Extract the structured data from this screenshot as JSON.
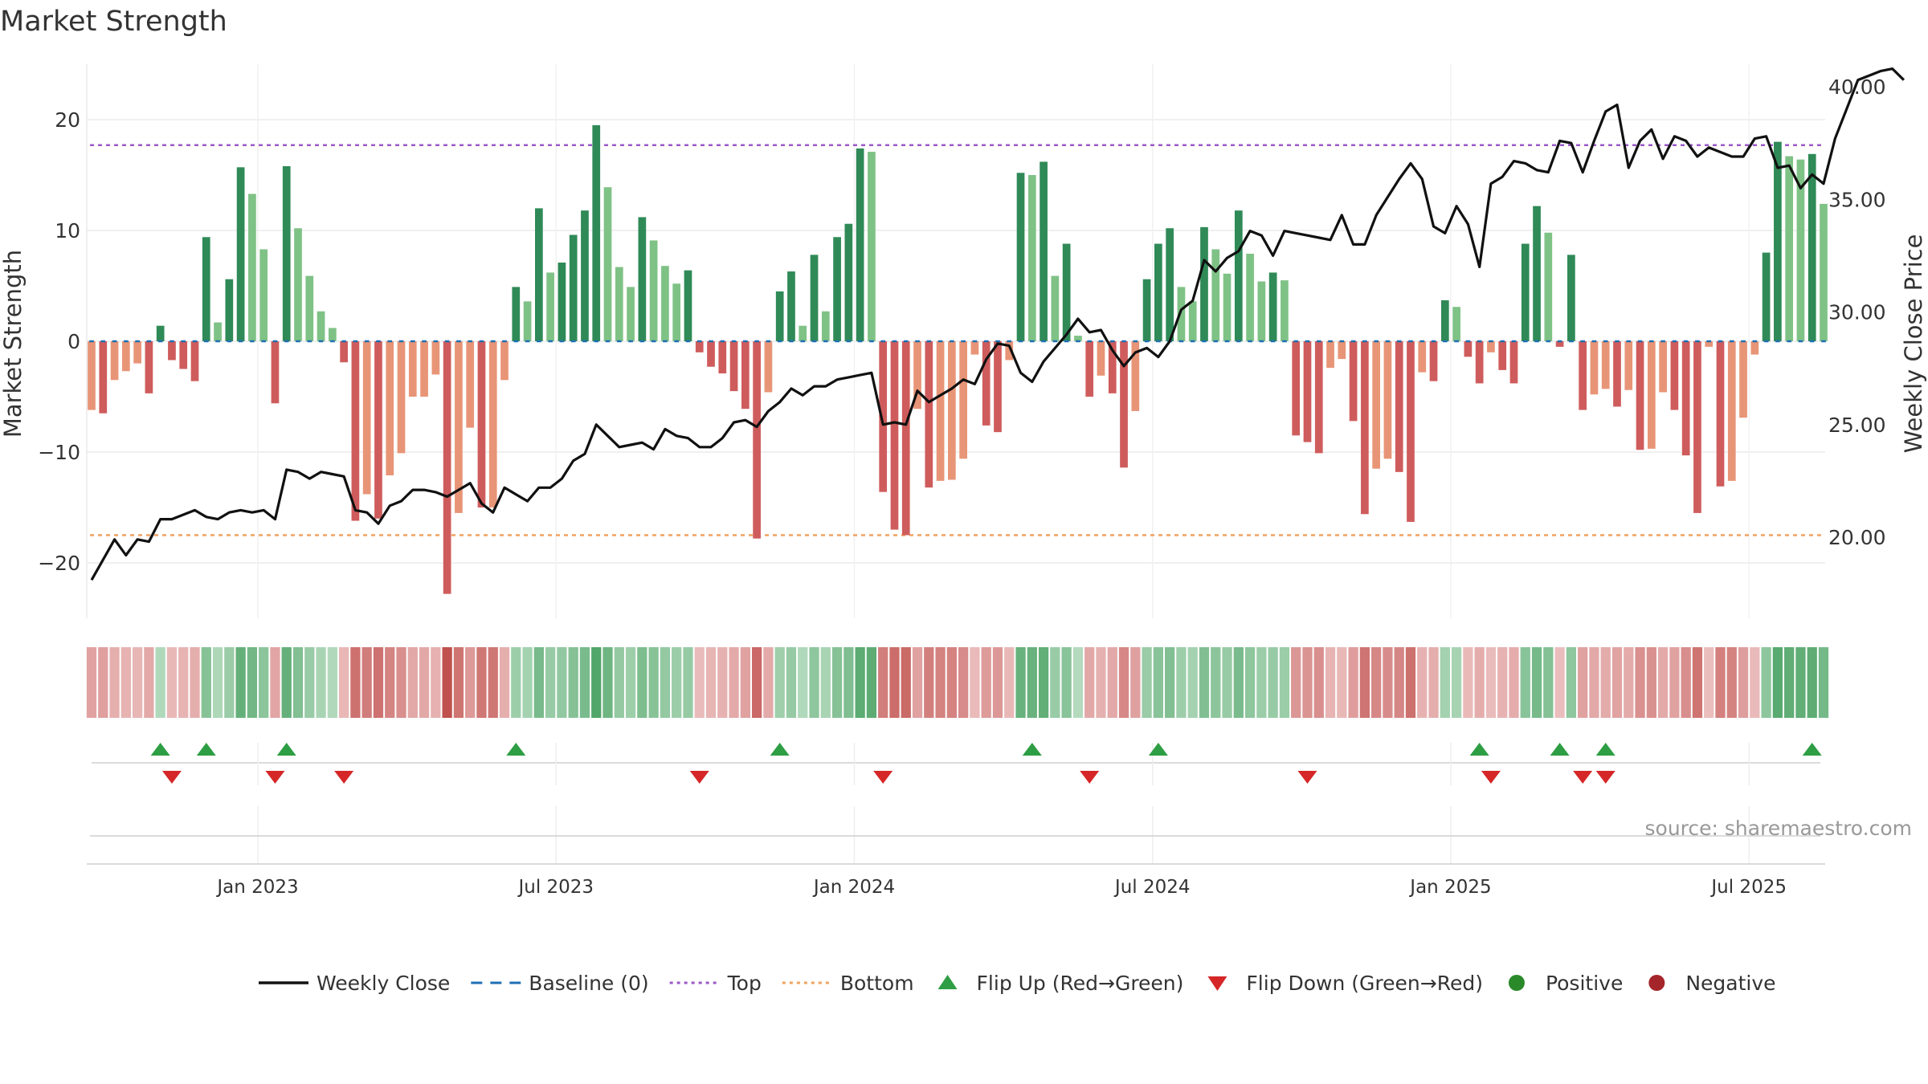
{
  "chart_data": {
    "type": "bar",
    "title": "Market Strength",
    "ylabel_left": "Market Strength",
    "ylabel_right": "Weekly Close Price",
    "source": "source: sharemaestro.com",
    "ylim_left": [
      -25,
      25
    ],
    "ylim_right": [
      16.4,
      41.0
    ],
    "left_ticks": [
      {
        "v": 20,
        "label": "20"
      },
      {
        "v": 10,
        "label": "10"
      },
      {
        "v": 0,
        "label": "0"
      },
      {
        "v": -10,
        "label": "−10"
      },
      {
        "v": -20,
        "label": "−20"
      }
    ],
    "right_ticks": [
      {
        "v": 40,
        "label": "40.00"
      },
      {
        "v": 35,
        "label": "35.00"
      },
      {
        "v": 30,
        "label": "30.00"
      },
      {
        "v": 25,
        "label": "25.00"
      },
      {
        "v": 20,
        "label": "20.00"
      }
    ],
    "x_ticks": [
      {
        "i": 14.5,
        "label": "Jan 2023"
      },
      {
        "i": 40.5,
        "label": "Jul 2023"
      },
      {
        "i": 66.5,
        "label": "Jan 2024"
      },
      {
        "i": 92.5,
        "label": "Jul 2024"
      },
      {
        "i": 118.5,
        "label": "Jan 2025"
      },
      {
        "i": 144.5,
        "label": "Jul 2025"
      }
    ],
    "top_threshold": 17.7,
    "bottom_threshold": -17.5,
    "values": [
      -6.2,
      -6.5,
      -3.5,
      -2.7,
      -2.0,
      -4.7,
      1.4,
      -1.7,
      -2.5,
      -3.6,
      9.4,
      1.7,
      5.6,
      15.7,
      13.3,
      8.3,
      -5.6,
      15.8,
      10.2,
      5.9,
      2.7,
      1.2,
      -1.9,
      -16.2,
      -13.8,
      -16.0,
      -12.1,
      -10.1,
      -5.0,
      -5.0,
      -3.0,
      -22.8,
      -15.5,
      -7.8,
      -15.0,
      -15.0,
      -3.5,
      4.9,
      3.6,
      12.0,
      6.2,
      7.1,
      9.6,
      11.8,
      19.5,
      13.9,
      6.7,
      4.9,
      11.2,
      9.1,
      6.8,
      5.2,
      6.4,
      -1.0,
      -2.3,
      -2.9,
      -4.5,
      -6.1,
      -17.8,
      -4.6,
      4.5,
      6.3,
      1.4,
      7.8,
      2.7,
      9.4,
      10.6,
      17.4,
      17.1,
      -13.6,
      -17.0,
      -17.5,
      -6.1,
      -13.2,
      -12.6,
      -12.5,
      -10.6,
      -1.2,
      -7.6,
      -8.2,
      -1.7,
      15.2,
      15.0,
      16.2,
      5.9,
      8.8,
      0.5,
      -5.0,
      -3.1,
      -4.7,
      -11.4,
      -6.3,
      5.6,
      8.8,
      10.2,
      4.9,
      3.6,
      10.3,
      8.3,
      6.1,
      11.8,
      7.9,
      5.4,
      6.2,
      5.5,
      -8.5,
      -9.1,
      -10.1,
      -2.4,
      -1.6,
      -7.2,
      -15.6,
      -11.5,
      -10.6,
      -11.8,
      -16.3,
      -2.8,
      -3.6,
      3.7,
      3.1,
      -1.4,
      -3.8,
      -1.0,
      -2.6,
      -3.8,
      8.8,
      12.2,
      9.8,
      -0.5,
      7.8,
      -6.2,
      -4.8,
      -4.3,
      -5.9,
      -4.4,
      -9.8,
      -9.7,
      -4.6,
      -6.2,
      -10.3,
      -15.5,
      -0.5,
      -13.1,
      -12.6,
      -6.9,
      -1.2,
      8.0,
      18.0,
      16.7,
      16.4,
      16.9,
      12.4
    ],
    "weekly_close": [
      18.1,
      19.0,
      19.9,
      19.2,
      19.9,
      19.8,
      20.8,
      20.8,
      21.0,
      21.2,
      20.9,
      20.8,
      21.1,
      21.2,
      21.1,
      21.2,
      20.8,
      23.0,
      22.9,
      22.6,
      22.9,
      22.8,
      22.7,
      21.2,
      21.1,
      20.6,
      21.4,
      21.6,
      22.1,
      22.1,
      22.0,
      21.8,
      22.1,
      22.4,
      21.5,
      21.1,
      22.2,
      21.9,
      21.6,
      22.2,
      22.2,
      22.6,
      23.4,
      23.7,
      25.0,
      24.5,
      24.0,
      24.1,
      24.2,
      23.9,
      24.8,
      24.5,
      24.4,
      24.0,
      24.0,
      24.4,
      25.1,
      25.2,
      24.9,
      25.6,
      26.0,
      26.6,
      26.3,
      26.7,
      26.7,
      27.0,
      27.1,
      27.2,
      27.3,
      25.0,
      25.1,
      25.0,
      26.5,
      26.0,
      26.3,
      26.6,
      27.0,
      26.8,
      27.9,
      28.6,
      28.5,
      27.3,
      26.9,
      27.8,
      28.4,
      29.0,
      29.7,
      29.1,
      29.2,
      28.3,
      27.6,
      28.2,
      28.4,
      28.0,
      28.7,
      30.1,
      30.5,
      32.3,
      31.8,
      32.4,
      32.7,
      33.6,
      33.4,
      32.5,
      33.6,
      33.5,
      33.4,
      33.3,
      33.2,
      34.3,
      33.0,
      33.0,
      34.3,
      35.1,
      35.9,
      36.6,
      35.9,
      33.8,
      33.5,
      34.7,
      33.9,
      32.0,
      35.7,
      36.0,
      36.7,
      36.6,
      36.3,
      36.2,
      37.6,
      37.5,
      36.2,
      37.6,
      38.9,
      39.2,
      36.4,
      37.6,
      38.1,
      36.8,
      37.8,
      37.6,
      36.9,
      37.3,
      37.1,
      36.9,
      36.9,
      37.7,
      37.8,
      36.4,
      36.5,
      35.5,
      36.1,
      35.7,
      37.7,
      39.0,
      40.3,
      40.5,
      40.7,
      40.8,
      40.3
    ],
    "flip_up_idx": [
      6,
      10,
      17,
      37,
      60,
      82,
      93,
      121,
      128,
      132,
      150
    ],
    "flip_down_idx": [
      7,
      16,
      22,
      53,
      69,
      87,
      106,
      122,
      130,
      132
    ],
    "legend": [
      {
        "key": "line",
        "label": "Weekly Close",
        "color": "#111111"
      },
      {
        "key": "dash",
        "label": "Baseline (0)",
        "color": "#1f6fb4"
      },
      {
        "key": "dot",
        "label": "Top",
        "color": "#9b59c9"
      },
      {
        "key": "dot",
        "label": "Bottom",
        "color": "#f0a35e"
      },
      {
        "key": "up",
        "label": "Flip Up (Red→Green)",
        "color": "#2e9e44"
      },
      {
        "key": "down",
        "label": "Flip Down (Green→Red)",
        "color": "#d62728"
      },
      {
        "key": "circle",
        "label": "Positive",
        "color": "#2a8a2a"
      },
      {
        "key": "circle",
        "label": "Negative",
        "color": "#a5262a"
      }
    ],
    "grid": true
  }
}
